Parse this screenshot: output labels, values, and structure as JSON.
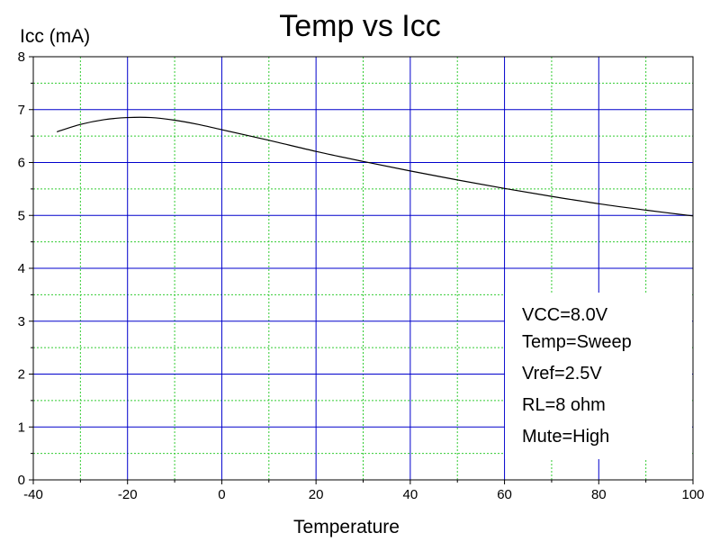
{
  "chart_data": {
    "type": "line",
    "title": "Temp vs Icc",
    "xlabel": "Temperature",
    "ylabel": "Icc (mA)",
    "xlim": [
      -40,
      100
    ],
    "ylim": [
      0,
      8
    ],
    "x_ticks": [
      -40,
      -20,
      0,
      20,
      40,
      60,
      80,
      100
    ],
    "x_tick_labels": [
      "-40",
      "-20",
      "0",
      "20",
      "40",
      "60",
      "80",
      "100"
    ],
    "y_ticks": [
      0,
      1,
      2,
      3,
      4,
      5,
      6,
      7,
      8
    ],
    "y_tick_labels": [
      "0",
      "1",
      "2",
      "3",
      "4",
      "5",
      "6",
      "7",
      "8"
    ],
    "grid": true,
    "legend": "none",
    "series": [
      {
        "color": "#000000",
        "x": [
          -35,
          -30,
          -25,
          -20,
          -15,
          -10,
          -5,
          0,
          10,
          20,
          30,
          40,
          50,
          60,
          70,
          80,
          90,
          100
        ],
        "y": [
          6.58,
          6.72,
          6.81,
          6.85,
          6.85,
          6.8,
          6.72,
          6.62,
          6.42,
          6.21,
          6.02,
          5.84,
          5.67,
          5.51,
          5.36,
          5.22,
          5.1,
          4.99
        ]
      }
    ],
    "annotation_lines": [
      "VCC=8.0V",
      "Temp=Sweep",
      "Vref=2.5V",
      "RL=8 ohm",
      "Mute=High"
    ],
    "colors": {
      "major_grid": "#0000cc",
      "minor_grid": "#33cc33",
      "axis": "#000000"
    }
  }
}
